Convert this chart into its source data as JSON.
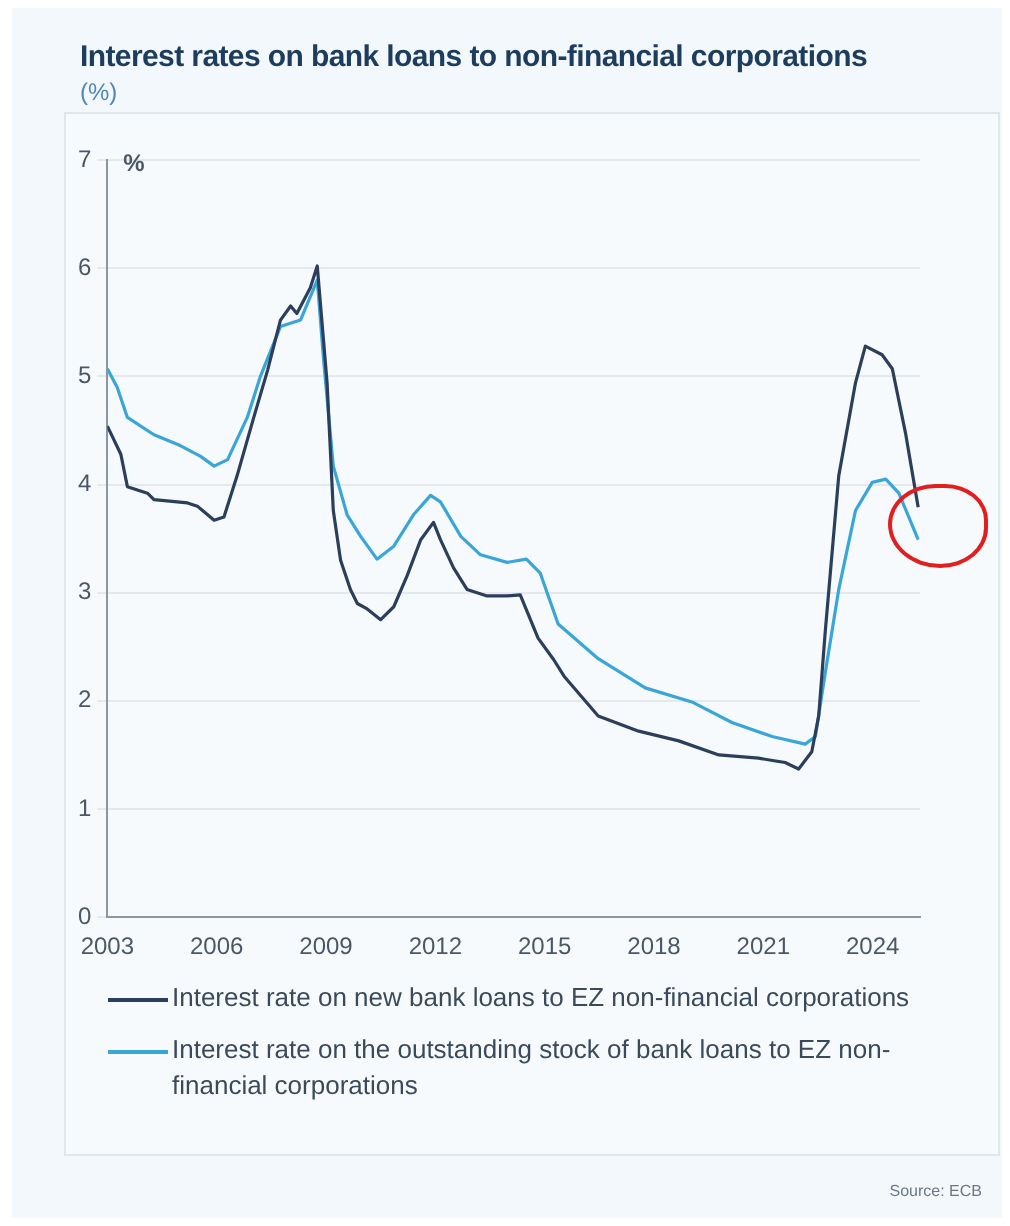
{
  "chart_data": {
    "type": "line",
    "title": "Interest rates on bank loans to non-financial corporations",
    "subtitle": "(%)",
    "ylabel": "%",
    "xlim": [
      2003,
      2025.3
    ],
    "xticks": [
      2003,
      2006,
      2009,
      2012,
      2015,
      2018,
      2021,
      2024
    ],
    "ylim": [
      0,
      7
    ],
    "yticks": [
      0,
      1,
      2,
      3,
      4,
      5,
      6,
      7
    ],
    "grid": "y",
    "legend": "bottom",
    "marker": "none",
    "line_style": "solid",
    "annotations": [
      "Source: ECB"
    ],
    "series": [
      {
        "name": "Interest rate on new bank loans to EZ non-financial corporations",
        "color": "#2b3f5c",
        "x": [
          2003.0,
          2003.37,
          2003.55,
          2004.1,
          2004.28,
          2005.2,
          2005.47,
          2005.93,
          2006.2,
          2006.56,
          2007.0,
          2007.4,
          2007.75,
          2008.03,
          2008.2,
          2008.57,
          2008.76,
          2009.03,
          2009.2,
          2009.4,
          2009.67,
          2009.86,
          2010.13,
          2010.5,
          2010.86,
          2011.23,
          2011.6,
          2011.95,
          2012.14,
          2012.5,
          2012.87,
          2013.42,
          2013.97,
          2014.33,
          2014.82,
          2015.25,
          2015.55,
          2016.47,
          2017.58,
          2018.68,
          2019.78,
          2020.87,
          2021.6,
          2021.97,
          2022.33,
          2022.52,
          2022.7,
          2023.07,
          2023.53,
          2023.8,
          2024.26,
          2024.54,
          2024.9,
          2025.25
        ],
        "values": [
          4.54,
          4.28,
          3.98,
          3.92,
          3.86,
          3.83,
          3.8,
          3.67,
          3.7,
          4.08,
          4.6,
          5.06,
          5.52,
          5.65,
          5.58,
          5.82,
          6.02,
          4.94,
          3.76,
          3.3,
          3.03,
          2.9,
          2.85,
          2.75,
          2.87,
          3.16,
          3.49,
          3.65,
          3.49,
          3.23,
          3.03,
          2.97,
          2.97,
          2.98,
          2.58,
          2.38,
          2.22,
          1.86,
          1.72,
          1.63,
          1.5,
          1.47,
          1.43,
          1.37,
          1.53,
          1.86,
          2.64,
          4.08,
          4.94,
          5.28,
          5.2,
          5.07,
          4.48,
          3.79
        ]
      },
      {
        "name": "Interest rate on the outstanding stock of bank loans to EZ non-financial corporations",
        "color": "#3aa6d8",
        "x": [
          2003.0,
          2003.27,
          2003.55,
          2004.28,
          2005.0,
          2005.56,
          2005.93,
          2006.3,
          2006.84,
          2007.2,
          2007.75,
          2008.3,
          2008.76,
          2008.94,
          2009.2,
          2009.58,
          2009.95,
          2010.4,
          2010.86,
          2011.4,
          2011.87,
          2012.14,
          2012.7,
          2013.24,
          2013.97,
          2014.5,
          2014.88,
          2015.37,
          2016.47,
          2017.76,
          2019.04,
          2020.14,
          2021.24,
          2022.15,
          2022.43,
          2022.7,
          2023.07,
          2023.53,
          2023.99,
          2024.36,
          2024.72,
          2025.25
        ],
        "values": [
          5.07,
          4.9,
          4.62,
          4.46,
          4.36,
          4.26,
          4.17,
          4.23,
          4.62,
          5.0,
          5.46,
          5.52,
          5.89,
          5.13,
          4.17,
          3.72,
          3.52,
          3.31,
          3.43,
          3.72,
          3.9,
          3.84,
          3.52,
          3.35,
          3.28,
          3.31,
          3.18,
          2.71,
          2.39,
          2.12,
          1.99,
          1.8,
          1.67,
          1.6,
          1.67,
          2.26,
          3.03,
          3.76,
          4.02,
          4.05,
          3.92,
          3.49
        ]
      }
    ]
  }
}
